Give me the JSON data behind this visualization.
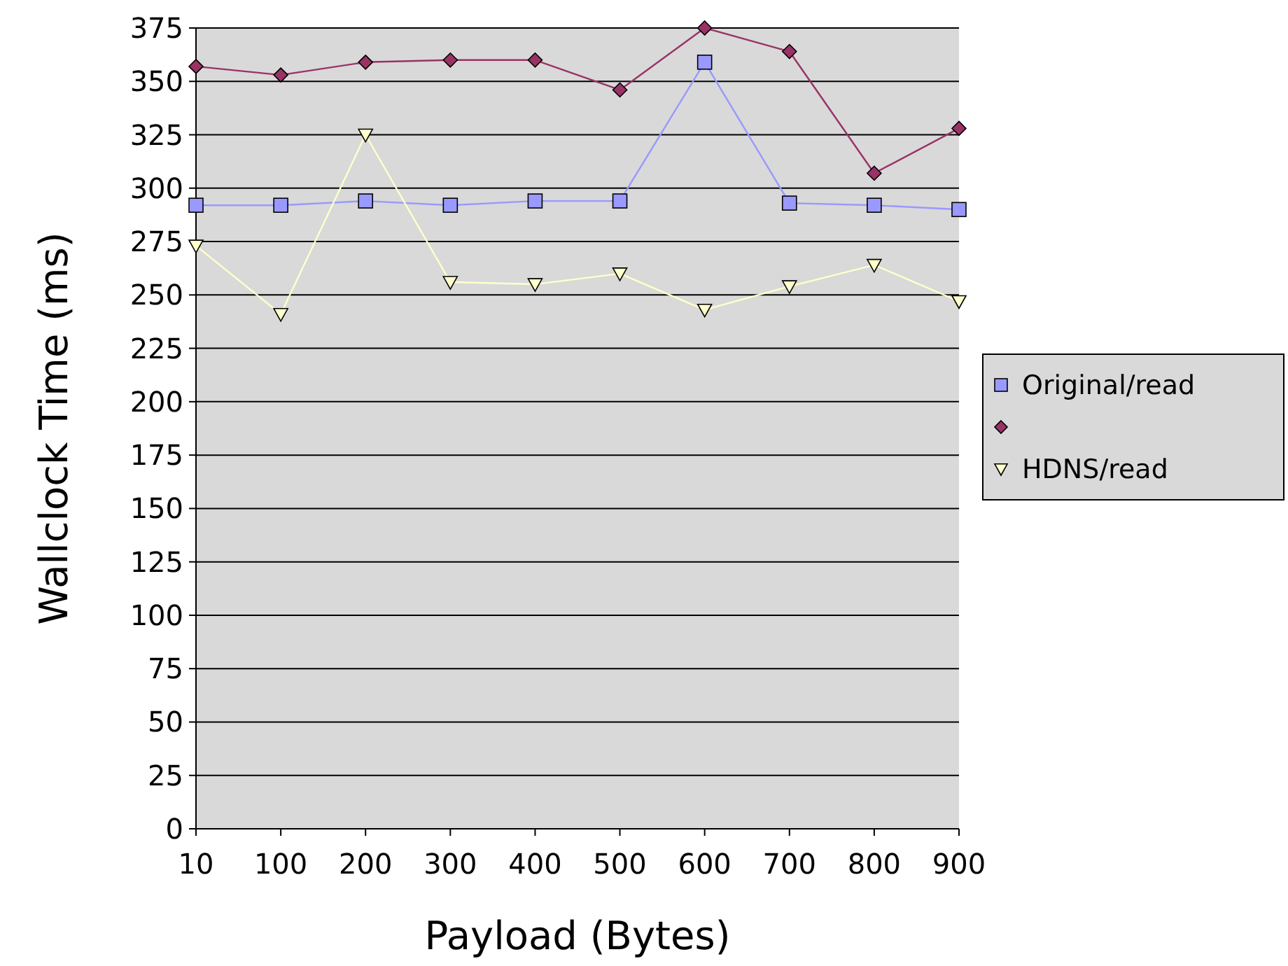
{
  "chart_data": {
    "type": "line",
    "xlabel": "Payload (Bytes)",
    "ylabel": "Wallclock Time (ms)",
    "categories": [
      "10",
      "100",
      "200",
      "300",
      "400",
      "500",
      "600",
      "700",
      "800",
      "900"
    ],
    "ylim": [
      0,
      375
    ],
    "yticks": [
      0,
      25,
      50,
      75,
      100,
      125,
      150,
      175,
      200,
      225,
      250,
      275,
      300,
      325,
      350,
      375
    ],
    "grid": "y",
    "legend": "right",
    "series": [
      {
        "name": "Original/read",
        "color": "#9999ff",
        "marker": "square",
        "values": [
          292,
          292,
          294,
          292,
          294,
          294,
          359,
          293,
          292,
          290
        ]
      },
      {
        "color": "#993366",
        "marker": "diamond",
        "values": [
          357,
          353,
          359,
          360,
          360,
          346,
          375,
          364,
          307,
          328
        ]
      },
      {
        "name": "HDNS/read",
        "color": "#ffffcc",
        "marker": "triangle",
        "values": [
          273,
          241,
          325,
          256,
          255,
          260,
          243,
          254,
          264,
          247
        ]
      }
    ]
  }
}
